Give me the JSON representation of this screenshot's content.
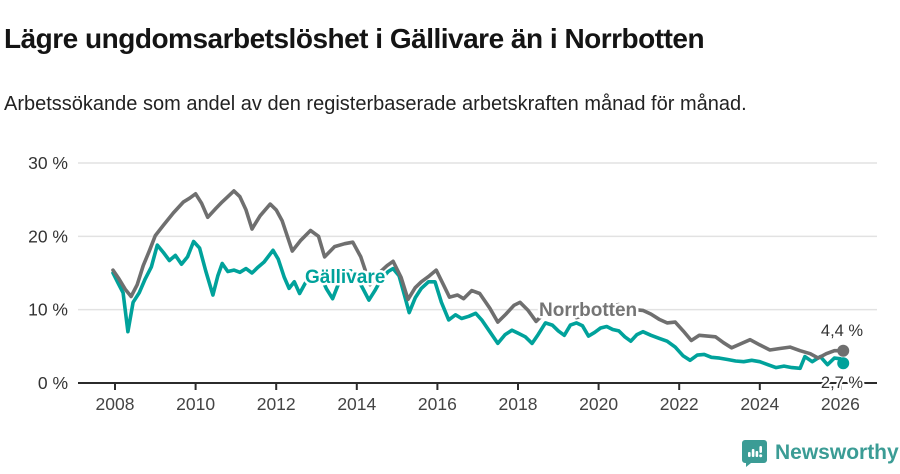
{
  "header": {
    "title": "Lägre ungdomsarbetslöshet i Gällivare än i Norrbotten",
    "subtitle": "Arbetssökande som andel av den registerbaserade arbetskraften månad för månad."
  },
  "footer": {
    "brand": "Newsworthy",
    "brand_color": "#3B9C95"
  },
  "colors": {
    "gallivare": "#00A29B",
    "norrbotten": "#6F6F6F",
    "grid": "#E2E2E2",
    "axis": "#2B2B2B",
    "tick_label": "#444444",
    "end_label": "#333333"
  },
  "chart_data": {
    "type": "line",
    "title": "Lägre ungdomsarbetslöshet i Gällivare än i Norrbotten",
    "subtitle": "Arbetssökande som andel av den registerbaserade arbetskraften månad för månad.",
    "x_axis": {
      "ticks": [
        2008,
        2010,
        2012,
        2014,
        2016,
        2018,
        2020,
        2022,
        2024,
        2026
      ],
      "range": [
        2007.9,
        2026.9
      ],
      "grid": false
    },
    "y_axis": {
      "ticks": [
        {
          "value": 0,
          "label": "0 %"
        },
        {
          "value": 10,
          "label": "10 %"
        },
        {
          "value": 20,
          "label": "20 %"
        },
        {
          "value": 30,
          "label": "30 %"
        }
      ],
      "range": [
        0,
        30
      ],
      "grid": true
    },
    "legend_position": "inline-labels",
    "series": [
      {
        "name": "Gällivare",
        "color": "#00A29B",
        "end_label": "2,7 %",
        "end_value": 2.7,
        "points": [
          [
            2007.95,
            15.0
          ],
          [
            2008.08,
            13.6
          ],
          [
            2008.2,
            12.3
          ],
          [
            2008.32,
            7.0
          ],
          [
            2008.45,
            11.0
          ],
          [
            2008.6,
            12.3
          ],
          [
            2008.75,
            14.2
          ],
          [
            2008.9,
            15.8
          ],
          [
            2009.05,
            18.8
          ],
          [
            2009.2,
            17.8
          ],
          [
            2009.35,
            16.7
          ],
          [
            2009.5,
            17.4
          ],
          [
            2009.65,
            16.2
          ],
          [
            2009.8,
            17.2
          ],
          [
            2009.95,
            19.3
          ],
          [
            2010.1,
            18.4
          ],
          [
            2010.25,
            15.3
          ],
          [
            2010.43,
            12.0
          ],
          [
            2010.55,
            14.6
          ],
          [
            2010.66,
            16.3
          ],
          [
            2010.8,
            15.2
          ],
          [
            2010.95,
            15.4
          ],
          [
            2011.1,
            15.1
          ],
          [
            2011.25,
            15.6
          ],
          [
            2011.4,
            15.0
          ],
          [
            2011.55,
            15.8
          ],
          [
            2011.7,
            16.5
          ],
          [
            2011.92,
            18.1
          ],
          [
            2012.05,
            16.9
          ],
          [
            2012.2,
            14.4
          ],
          [
            2012.32,
            12.9
          ],
          [
            2012.45,
            13.8
          ],
          [
            2012.58,
            12.2
          ],
          [
            2012.72,
            13.6
          ],
          [
            2012.85,
            14.7
          ],
          [
            2013.0,
            15.3
          ],
          [
            2013.1,
            14.6
          ],
          [
            2013.25,
            12.8
          ],
          [
            2013.4,
            11.5
          ],
          [
            2013.55,
            13.6
          ],
          [
            2013.7,
            14.9
          ],
          [
            2013.85,
            15.3
          ],
          [
            2014.0,
            14.4
          ],
          [
            2014.15,
            12.9
          ],
          [
            2014.3,
            11.3
          ],
          [
            2014.45,
            12.6
          ],
          [
            2014.6,
            14.1
          ],
          [
            2014.78,
            15.2
          ],
          [
            2014.9,
            15.6
          ],
          [
            2015.05,
            14.6
          ],
          [
            2015.18,
            12.0
          ],
          [
            2015.3,
            9.6
          ],
          [
            2015.45,
            11.6
          ],
          [
            2015.6,
            12.9
          ],
          [
            2015.78,
            13.8
          ],
          [
            2015.94,
            13.8
          ],
          [
            2016.1,
            11.0
          ],
          [
            2016.28,
            8.6
          ],
          [
            2016.45,
            9.3
          ],
          [
            2016.6,
            8.8
          ],
          [
            2016.78,
            9.1
          ],
          [
            2016.95,
            9.5
          ],
          [
            2017.1,
            8.6
          ],
          [
            2017.3,
            7.0
          ],
          [
            2017.5,
            5.4
          ],
          [
            2017.68,
            6.6
          ],
          [
            2017.85,
            7.2
          ],
          [
            2018.0,
            6.8
          ],
          [
            2018.18,
            6.3
          ],
          [
            2018.35,
            5.4
          ],
          [
            2018.5,
            6.6
          ],
          [
            2018.68,
            8.2
          ],
          [
            2018.85,
            7.9
          ],
          [
            2019.0,
            7.1
          ],
          [
            2019.15,
            6.5
          ],
          [
            2019.3,
            7.9
          ],
          [
            2019.45,
            8.2
          ],
          [
            2019.6,
            7.8
          ],
          [
            2019.75,
            6.4
          ],
          [
            2019.9,
            6.9
          ],
          [
            2020.05,
            7.5
          ],
          [
            2020.2,
            7.7
          ],
          [
            2020.35,
            7.3
          ],
          [
            2020.5,
            7.1
          ],
          [
            2020.65,
            6.3
          ],
          [
            2020.8,
            5.7
          ],
          [
            2020.95,
            6.6
          ],
          [
            2021.1,
            7.0
          ],
          [
            2021.3,
            6.5
          ],
          [
            2021.5,
            6.1
          ],
          [
            2021.7,
            5.7
          ],
          [
            2021.9,
            4.9
          ],
          [
            2022.1,
            3.7
          ],
          [
            2022.27,
            3.1
          ],
          [
            2022.45,
            3.8
          ],
          [
            2022.62,
            3.9
          ],
          [
            2022.8,
            3.5
          ],
          [
            2023.0,
            3.4
          ],
          [
            2023.2,
            3.2
          ],
          [
            2023.4,
            3.0
          ],
          [
            2023.6,
            2.9
          ],
          [
            2023.8,
            3.1
          ],
          [
            2024.0,
            2.9
          ],
          [
            2024.2,
            2.5
          ],
          [
            2024.4,
            2.1
          ],
          [
            2024.6,
            2.3
          ],
          [
            2024.8,
            2.1
          ],
          [
            2025.0,
            2.0
          ],
          [
            2025.12,
            3.6
          ],
          [
            2025.3,
            2.9
          ],
          [
            2025.5,
            3.6
          ],
          [
            2025.68,
            2.5
          ],
          [
            2025.85,
            3.4
          ],
          [
            2026.0,
            3.3
          ],
          [
            2026.07,
            2.7
          ]
        ]
      },
      {
        "name": "Norrbotten",
        "color": "#6F6F6F",
        "end_label": "4,4 %",
        "end_value": 4.4,
        "points": [
          [
            2007.95,
            15.4
          ],
          [
            2008.1,
            14.2
          ],
          [
            2008.25,
            12.8
          ],
          [
            2008.4,
            11.8
          ],
          [
            2008.55,
            13.4
          ],
          [
            2008.7,
            16.0
          ],
          [
            2008.85,
            18.0
          ],
          [
            2009.0,
            20.1
          ],
          [
            2009.2,
            21.5
          ],
          [
            2009.45,
            23.2
          ],
          [
            2009.7,
            24.7
          ],
          [
            2009.85,
            25.2
          ],
          [
            2010.0,
            25.8
          ],
          [
            2010.15,
            24.5
          ],
          [
            2010.3,
            22.6
          ],
          [
            2010.5,
            23.8
          ],
          [
            2010.66,
            24.7
          ],
          [
            2010.8,
            25.4
          ],
          [
            2010.95,
            26.2
          ],
          [
            2011.1,
            25.4
          ],
          [
            2011.25,
            23.6
          ],
          [
            2011.4,
            21.0
          ],
          [
            2011.6,
            22.8
          ],
          [
            2011.85,
            24.4
          ],
          [
            2012.0,
            23.6
          ],
          [
            2012.15,
            22.1
          ],
          [
            2012.4,
            18.0
          ],
          [
            2012.6,
            19.4
          ],
          [
            2012.85,
            20.8
          ],
          [
            2013.05,
            20.0
          ],
          [
            2013.2,
            17.2
          ],
          [
            2013.45,
            18.6
          ],
          [
            2013.7,
            19.0
          ],
          [
            2013.9,
            19.2
          ],
          [
            2014.1,
            17.2
          ],
          [
            2014.33,
            13.4
          ],
          [
            2014.55,
            15.0
          ],
          [
            2014.75,
            16.0
          ],
          [
            2014.9,
            16.6
          ],
          [
            2015.1,
            14.4
          ],
          [
            2015.27,
            11.4
          ],
          [
            2015.45,
            13.0
          ],
          [
            2015.6,
            13.8
          ],
          [
            2015.8,
            14.6
          ],
          [
            2015.97,
            15.4
          ],
          [
            2016.15,
            13.4
          ],
          [
            2016.3,
            11.7
          ],
          [
            2016.5,
            12.0
          ],
          [
            2016.65,
            11.5
          ],
          [
            2016.85,
            12.6
          ],
          [
            2017.05,
            12.2
          ],
          [
            2017.3,
            10.2
          ],
          [
            2017.5,
            8.3
          ],
          [
            2017.7,
            9.4
          ],
          [
            2017.9,
            10.6
          ],
          [
            2018.05,
            11.0
          ],
          [
            2018.25,
            9.9
          ],
          [
            2018.45,
            8.4
          ],
          [
            2018.65,
            9.5
          ],
          [
            2018.85,
            10.1
          ],
          [
            2019.05,
            10.4
          ],
          [
            2019.25,
            9.9
          ],
          [
            2019.45,
            8.9
          ],
          [
            2019.65,
            9.2
          ],
          [
            2019.85,
            9.8
          ],
          [
            2020.05,
            10.1
          ],
          [
            2020.25,
            10.4
          ],
          [
            2020.5,
            10.7
          ],
          [
            2020.7,
            10.3
          ],
          [
            2020.9,
            10.0
          ],
          [
            2021.1,
            9.9
          ],
          [
            2021.3,
            9.4
          ],
          [
            2021.5,
            8.7
          ],
          [
            2021.7,
            8.2
          ],
          [
            2021.9,
            8.3
          ],
          [
            2022.1,
            7.1
          ],
          [
            2022.3,
            5.8
          ],
          [
            2022.5,
            6.5
          ],
          [
            2022.7,
            6.4
          ],
          [
            2022.9,
            6.3
          ],
          [
            2023.1,
            5.5
          ],
          [
            2023.3,
            4.8
          ],
          [
            2023.55,
            5.4
          ],
          [
            2023.76,
            5.9
          ],
          [
            2024.0,
            5.2
          ],
          [
            2024.25,
            4.5
          ],
          [
            2024.5,
            4.7
          ],
          [
            2024.75,
            4.9
          ],
          [
            2025.0,
            4.4
          ],
          [
            2025.25,
            4.0
          ],
          [
            2025.45,
            3.4
          ],
          [
            2025.65,
            4.0
          ],
          [
            2025.85,
            4.4
          ],
          [
            2026.07,
            4.4
          ]
        ]
      }
    ]
  }
}
